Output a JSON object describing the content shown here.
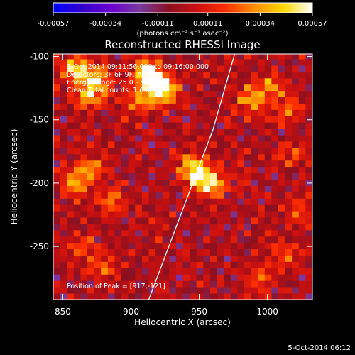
{
  "chart_data": {
    "type": "heatmap",
    "title": "Reconstructed RHESSI Image",
    "xlabel": "Heliocentric X (arcsec)",
    "ylabel": "Heliocentric Y (arcsec)",
    "xlim": [
      843,
      1033
    ],
    "ylim": [
      -292,
      -98
    ],
    "x_ticks": [
      "850",
      "900",
      "950",
      "1000"
    ],
    "x_tick_values": [
      850,
      900,
      950,
      1000
    ],
    "y_ticks": [
      "-100",
      "-150",
      "-200",
      "-250"
    ],
    "y_tick_values": [
      -100,
      -150,
      -200,
      -250
    ],
    "colorbar": {
      "ticks": [
        "-0.00057",
        "-0.00034",
        "-0.00011",
        "0.00011",
        "0.00034",
        "0.00057"
      ],
      "tick_values": [
        -0.00057,
        -0.00034,
        -0.00011,
        0.00011,
        0.00034,
        0.00057
      ],
      "range": [
        -0.00057,
        0.00057
      ],
      "units_label": "(photons cm⁻² s⁻¹ asec⁻²)",
      "colors": [
        "#0000ff",
        "#3300cc",
        "#6a00d0",
        "#7a3aa0",
        "#8a1020",
        "#cc1010",
        "#ff3000",
        "#ff9000",
        "#ffd800",
        "#ffffff"
      ]
    },
    "info": {
      "time": "3-Oct-2014 09:11:56.000 to 09:16:00.000",
      "detectors": "Detectors: 3F 6F 9F, Att 0",
      "energy": "Energy Range: 25.0 - 50.0 keV",
      "method": "Clean    Total counts: 1.69E+03"
    },
    "peak_label": "Position of Peak = [917,-121]",
    "peak": [
      917,
      -121
    ],
    "hot_spots": [
      {
        "x": 860,
        "y": -110,
        "value": 0.0005
      },
      {
        "x": 875,
        "y": -118,
        "value": 0.00044
      },
      {
        "x": 870,
        "y": -132,
        "value": 0.00036
      },
      {
        "x": 917,
        "y": -121,
        "value": 0.00057
      },
      {
        "x": 912,
        "y": -112,
        "value": 0.00048
      },
      {
        "x": 925,
        "y": -128,
        "value": 0.0004
      },
      {
        "x": 905,
        "y": -135,
        "value": 0.0003
      },
      {
        "x": 988,
        "y": -133,
        "value": 0.00034
      },
      {
        "x": 1003,
        "y": -123,
        "value": 0.0003
      },
      {
        "x": 1015,
        "y": -142,
        "value": 0.00028
      },
      {
        "x": 950,
        "y": -195,
        "value": 0.00045
      },
      {
        "x": 961,
        "y": -201,
        "value": 0.0004
      },
      {
        "x": 944,
        "y": -186,
        "value": 0.00032
      },
      {
        "x": 858,
        "y": -200,
        "value": 0.00036
      },
      {
        "x": 870,
        "y": -190,
        "value": 0.0003
      },
      {
        "x": 885,
        "y": -215,
        "value": 0.00028
      },
      {
        "x": 865,
        "y": -250,
        "value": 0.00022
      },
      {
        "x": 880,
        "y": -265,
        "value": 0.00024
      },
      {
        "x": 1012,
        "y": -255,
        "value": 0.00022
      },
      {
        "x": 995,
        "y": -275,
        "value": 0.0002
      },
      {
        "x": 1022,
        "y": -220,
        "value": 0.00018
      },
      {
        "x": 1020,
        "y": -178,
        "value": 0.00016
      }
    ],
    "limb_line": [
      [
        913,
        -292
      ],
      [
        940,
        -215
      ],
      [
        960,
        -158
      ],
      [
        976,
        -98
      ]
    ]
  },
  "timestamp": "5-Oct-2014 06:12"
}
